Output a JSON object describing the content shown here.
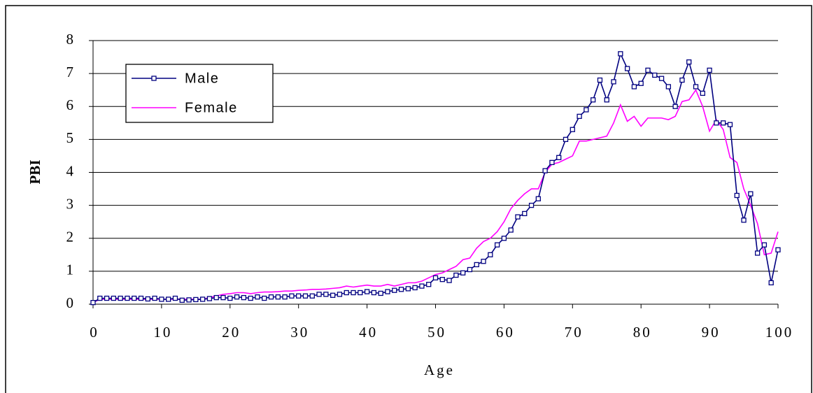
{
  "chart_data": {
    "type": "line",
    "x_label": "Age",
    "y_label": "PBI",
    "x": [
      0,
      1,
      2,
      3,
      4,
      5,
      6,
      7,
      8,
      9,
      10,
      11,
      12,
      13,
      14,
      15,
      16,
      17,
      18,
      19,
      20,
      21,
      22,
      23,
      24,
      25,
      26,
      27,
      28,
      29,
      30,
      31,
      32,
      33,
      34,
      35,
      36,
      37,
      38,
      39,
      40,
      41,
      42,
      43,
      44,
      45,
      46,
      47,
      48,
      49,
      50,
      51,
      52,
      53,
      54,
      55,
      56,
      57,
      58,
      59,
      60,
      61,
      62,
      63,
      64,
      65,
      66,
      67,
      68,
      69,
      70,
      71,
      72,
      73,
      74,
      75,
      76,
      77,
      78,
      79,
      80,
      81,
      82,
      83,
      84,
      85,
      86,
      87,
      88,
      89,
      90,
      91,
      92,
      93,
      94,
      95,
      96,
      97,
      98,
      99,
      100
    ],
    "series": [
      {
        "name": "Male",
        "color": "#000080",
        "marker": "square",
        "values": [
          0.05,
          0.18,
          0.18,
          0.18,
          0.18,
          0.18,
          0.18,
          0.18,
          0.16,
          0.18,
          0.15,
          0.15,
          0.18,
          0.12,
          0.13,
          0.14,
          0.15,
          0.17,
          0.2,
          0.2,
          0.18,
          0.22,
          0.2,
          0.18,
          0.22,
          0.18,
          0.22,
          0.22,
          0.22,
          0.25,
          0.25,
          0.25,
          0.25,
          0.3,
          0.3,
          0.27,
          0.3,
          0.35,
          0.35,
          0.35,
          0.38,
          0.35,
          0.33,
          0.38,
          0.42,
          0.45,
          0.47,
          0.5,
          0.55,
          0.6,
          0.8,
          0.75,
          0.72,
          0.88,
          0.95,
          1.05,
          1.2,
          1.3,
          1.5,
          1.8,
          2.0,
          2.25,
          2.65,
          2.75,
          3.0,
          3.2,
          4.05,
          4.3,
          4.45,
          5.0,
          5.3,
          5.7,
          5.9,
          6.2,
          6.8,
          6.2,
          6.75,
          7.6,
          7.15,
          6.6,
          6.7,
          7.1,
          6.95,
          6.85,
          6.6,
          6.0,
          6.8,
          7.35,
          6.6,
          6.4,
          7.1,
          5.5,
          5.5,
          5.45,
          3.3,
          2.55,
          3.35,
          1.55,
          1.8,
          0.65,
          1.65
        ]
      },
      {
        "name": "Female",
        "color": "#ff00ff",
        "values": [
          0.05,
          0.15,
          0.15,
          0.15,
          0.15,
          0.15,
          0.15,
          0.15,
          0.15,
          0.15,
          0.15,
          0.15,
          0.15,
          0.15,
          0.15,
          0.15,
          0.15,
          0.2,
          0.25,
          0.3,
          0.32,
          0.35,
          0.35,
          0.32,
          0.35,
          0.37,
          0.37,
          0.38,
          0.4,
          0.4,
          0.42,
          0.43,
          0.45,
          0.45,
          0.46,
          0.48,
          0.5,
          0.55,
          0.52,
          0.55,
          0.58,
          0.55,
          0.55,
          0.6,
          0.55,
          0.6,
          0.65,
          0.65,
          0.7,
          0.8,
          0.9,
          0.95,
          1.05,
          1.15,
          1.35,
          1.4,
          1.7,
          1.9,
          2.0,
          2.2,
          2.5,
          2.9,
          3.15,
          3.35,
          3.5,
          3.5,
          4.0,
          4.25,
          4.3,
          4.4,
          4.5,
          4.95,
          4.95,
          5.0,
          5.05,
          5.1,
          5.5,
          6.05,
          5.55,
          5.7,
          5.4,
          5.65,
          5.65,
          5.65,
          5.6,
          5.7,
          6.15,
          6.2,
          6.5,
          6.0,
          5.25,
          5.6,
          5.3,
          4.45,
          4.3,
          3.5,
          3.0,
          2.45,
          1.5,
          1.55,
          2.2
        ]
      }
    ],
    "xlim": [
      0,
      100
    ],
    "xticks": [
      0,
      10,
      20,
      30,
      40,
      50,
      60,
      70,
      80,
      90,
      100
    ],
    "ylim": [
      0,
      8
    ],
    "yticks": [
      0,
      1,
      2,
      3,
      4,
      5,
      6,
      7,
      8
    ],
    "grid": true,
    "legend": "upper left"
  }
}
